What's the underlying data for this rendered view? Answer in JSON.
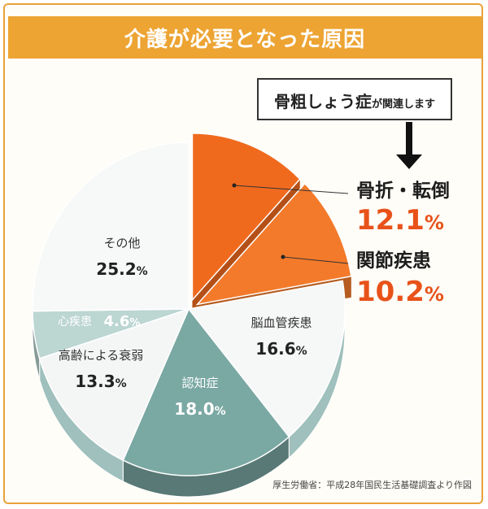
{
  "title": "介護が必要となった原因",
  "note": {
    "main": "骨粗しょう症",
    "sub": "が関連します"
  },
  "source": "厚生労働省：平成28年国民生活基礎調査より作図",
  "colors": {
    "accent": "#eda433",
    "highlight": "#f06a1e",
    "highlight_text": "#e8521a",
    "teal": "#7aa8a3",
    "light_teal": "#bcd6d2",
    "light": "#f4f7f6"
  },
  "chart_data": {
    "type": "pie",
    "unit": "%",
    "slices": [
      {
        "label": "骨折・転倒",
        "value": 12.1,
        "display": "12.1",
        "highlight": true,
        "color": "#f06a1e"
      },
      {
        "label": "関節疾患",
        "value": 10.2,
        "display": "10.2",
        "highlight": true,
        "color": "#f37a2a"
      },
      {
        "label": "脳血管疾患",
        "value": 16.6,
        "display": "16.6",
        "highlight": false,
        "color": "#f6f7f7"
      },
      {
        "label": "認知症",
        "value": 18.0,
        "display": "18.0",
        "highlight": false,
        "color": "#7aa8a3"
      },
      {
        "label": "高齢による衰弱",
        "value": 13.3,
        "display": "13.3",
        "highlight": false,
        "color": "#f4f6f6"
      },
      {
        "label": "心疾患",
        "value": 4.6,
        "display": "4.6",
        "highlight": false,
        "color": "#bcd6d2"
      },
      {
        "label": "その他",
        "value": 25.2,
        "display": "25.2",
        "highlight": false,
        "color": "#f7f8f8"
      }
    ]
  }
}
